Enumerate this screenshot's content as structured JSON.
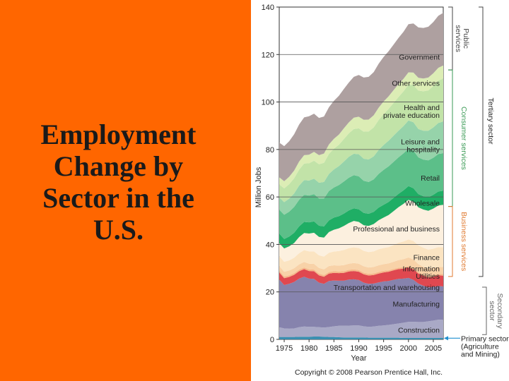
{
  "slide": {
    "title_lines": [
      "Employment",
      "Change by",
      "Sector in the",
      "U.S."
    ],
    "copyright": "Copyright © 2008 Pearson Prentice Hall, Inc."
  },
  "colors": {
    "left_panel": "#ff6600",
    "consumer": "#3a9a55",
    "business": "#e07a30",
    "secondary": "#888888",
    "primary": "#1f8fd0"
  },
  "chart_data": {
    "type": "area",
    "stacked": true,
    "xlabel": "Year",
    "ylabel": "Million Jobs",
    "xlim": [
      1974,
      2007
    ],
    "ylim": [
      0,
      140
    ],
    "x_ticks": [
      1975,
      1980,
      1985,
      1990,
      1995,
      2000,
      2005
    ],
    "y_ticks": [
      0,
      20,
      40,
      60,
      80,
      100,
      120,
      140
    ],
    "x": [
      1974,
      1975,
      1976,
      1977,
      1978,
      1979,
      1980,
      1981,
      1982,
      1983,
      1984,
      1985,
      1986,
      1987,
      1988,
      1989,
      1990,
      1991,
      1992,
      1993,
      1994,
      1995,
      1996,
      1997,
      1998,
      1999,
      2000,
      2001,
      2002,
      2003,
      2004,
      2005,
      2006,
      2007
    ],
    "series": [
      {
        "name": "Primary sector (Agriculture and Mining)",
        "color": "#3a8fb0",
        "values": [
          1.0,
          1.0,
          1.0,
          1.0,
          1.1,
          1.1,
          1.1,
          1.2,
          1.2,
          1.1,
          1.0,
          1.0,
          0.9,
          0.8,
          0.8,
          0.8,
          0.8,
          0.8,
          0.7,
          0.7,
          0.7,
          0.7,
          0.7,
          0.7,
          0.7,
          0.6,
          0.6,
          0.6,
          0.6,
          0.6,
          0.6,
          0.6,
          0.6,
          0.6
        ]
      },
      {
        "name": "Construction",
        "color": "#a9a9c6",
        "values": [
          4.1,
          3.6,
          3.5,
          3.6,
          4.0,
          4.3,
          4.2,
          4.1,
          3.9,
          3.9,
          4.2,
          4.5,
          4.8,
          4.9,
          5.0,
          5.1,
          5.1,
          4.7,
          4.6,
          4.7,
          5.0,
          5.2,
          5.4,
          5.7,
          6.0,
          6.4,
          6.8,
          6.8,
          6.7,
          6.7,
          7.0,
          7.3,
          7.7,
          7.7
        ]
      },
      {
        "name": "Manufacturing",
        "color": "#8683ad",
        "values": [
          20.1,
          18.3,
          18.9,
          19.6,
          20.5,
          21.0,
          20.3,
          20.2,
          18.8,
          18.4,
          19.4,
          19.3,
          19.0,
          19.0,
          19.4,
          19.4,
          19.1,
          18.4,
          18.1,
          18.1,
          18.3,
          18.5,
          18.5,
          18.7,
          18.8,
          18.6,
          18.5,
          17.7,
          16.2,
          15.3,
          14.3,
          14.2,
          14.2,
          14.0
        ]
      },
      {
        "name": "Transportation and warehousing",
        "color": "#e04850",
        "values": [
          3.0,
          2.9,
          2.9,
          3.0,
          3.1,
          3.2,
          3.2,
          3.2,
          3.1,
          3.0,
          3.1,
          3.2,
          3.2,
          3.3,
          3.4,
          3.5,
          3.5,
          3.5,
          3.5,
          3.6,
          3.7,
          3.8,
          3.9,
          4.0,
          4.1,
          4.2,
          4.4,
          4.4,
          4.2,
          4.2,
          4.2,
          4.3,
          4.5,
          4.5
        ]
      },
      {
        "name": "Utilities",
        "color": "#f5b88a",
        "values": [
          0.7,
          0.7,
          0.7,
          0.7,
          0.7,
          0.7,
          0.7,
          0.7,
          0.7,
          0.7,
          0.7,
          0.7,
          0.7,
          0.7,
          0.7,
          0.7,
          0.7,
          0.7,
          0.7,
          0.7,
          0.7,
          0.7,
          0.6,
          0.6,
          0.6,
          0.6,
          0.6,
          0.6,
          0.6,
          0.6,
          0.6,
          0.6,
          0.6,
          0.6
        ]
      },
      {
        "name": "Information",
        "color": "#f8d2a8",
        "values": [
          2.0,
          2.0,
          2.0,
          2.1,
          2.2,
          2.3,
          2.4,
          2.4,
          2.4,
          2.4,
          2.5,
          2.5,
          2.5,
          2.6,
          2.6,
          2.7,
          2.7,
          2.7,
          2.7,
          2.7,
          2.8,
          2.8,
          2.9,
          3.0,
          3.2,
          3.4,
          3.6,
          3.6,
          3.4,
          3.2,
          3.1,
          3.1,
          3.0,
          3.0
        ]
      },
      {
        "name": "Finance",
        "color": "#fbe4c2",
        "values": [
          4.2,
          4.2,
          4.3,
          4.4,
          4.7,
          5.0,
          5.2,
          5.3,
          5.3,
          5.4,
          5.6,
          5.8,
          6.1,
          6.4,
          6.5,
          6.6,
          6.6,
          6.5,
          6.5,
          6.6,
          6.8,
          6.8,
          6.9,
          7.0,
          7.3,
          7.5,
          7.6,
          7.8,
          7.9,
          8.0,
          8.0,
          8.1,
          8.3,
          8.4
        ]
      },
      {
        "name": "Professional and business",
        "color": "#fcf0df",
        "values": [
          5.4,
          5.6,
          5.9,
          6.2,
          6.8,
          7.2,
          7.5,
          7.8,
          7.8,
          8.0,
          8.7,
          9.2,
          9.6,
          10.1,
          10.6,
          11.1,
          11.0,
          10.8,
          11.0,
          11.5,
          12.2,
          12.8,
          13.5,
          14.3,
          15.0,
          15.8,
          16.7,
          16.5,
          16.0,
          16.1,
          16.4,
          16.9,
          17.5,
          17.9
        ]
      },
      {
        "name": "Wholesale",
        "color": "#1fae65",
        "values": [
          4.1,
          4.0,
          4.1,
          4.3,
          4.5,
          4.7,
          4.7,
          4.8,
          4.7,
          4.7,
          4.9,
          5.1,
          5.1,
          5.2,
          5.3,
          5.3,
          5.3,
          5.2,
          5.1,
          5.1,
          5.3,
          5.4,
          5.5,
          5.6,
          5.6,
          5.7,
          5.8,
          5.7,
          5.6,
          5.6,
          5.7,
          5.8,
          5.9,
          5.9
        ]
      },
      {
        "name": "Retail",
        "color": "#5cbf89",
        "values": [
          10.0,
          10.2,
          10.5,
          10.9,
          11.2,
          11.4,
          11.3,
          11.5,
          11.5,
          11.8,
          12.4,
          12.7,
          13.1,
          13.5,
          13.8,
          14.0,
          13.9,
          13.5,
          13.4,
          13.7,
          14.2,
          14.7,
          15.0,
          15.2,
          15.4,
          15.6,
          15.7,
          15.8,
          15.5,
          15.4,
          15.5,
          15.6,
          15.8,
          15.8
        ]
      },
      {
        "name": "Leisure and hospitality",
        "color": "#96d3aa",
        "values": [
          5.2,
          5.3,
          5.5,
          5.7,
          6.0,
          6.2,
          6.3,
          6.5,
          6.6,
          6.9,
          7.2,
          7.6,
          8.0,
          8.4,
          8.8,
          9.0,
          9.3,
          9.3,
          9.5,
          9.7,
          10.1,
          10.5,
          10.8,
          11.0,
          11.2,
          11.5,
          11.9,
          12.0,
          11.9,
          12.2,
          12.5,
          12.8,
          13.1,
          13.4
        ]
      },
      {
        "name": "Health and private education",
        "color": "#c2e3a8",
        "values": [
          5.5,
          5.8,
          6.1,
          6.4,
          6.7,
          7.0,
          7.3,
          7.6,
          7.8,
          8.1,
          8.4,
          8.7,
          9.0,
          9.5,
          9.9,
          10.4,
          10.9,
          11.4,
          11.8,
          12.2,
          12.6,
          13.0,
          13.4,
          13.8,
          14.2,
          14.6,
          15.1,
          15.6,
          16.2,
          16.6,
          17.0,
          17.4,
          17.8,
          18.1
        ]
      },
      {
        "name": "Other services",
        "color": "#dcedb5",
        "values": [
          3.0,
          3.0,
          3.1,
          3.2,
          3.4,
          3.5,
          3.6,
          3.7,
          3.8,
          3.9,
          4.0,
          4.2,
          4.3,
          4.5,
          4.6,
          4.8,
          4.9,
          5.0,
          5.0,
          5.1,
          5.2,
          5.3,
          5.3,
          5.4,
          5.4,
          5.3,
          5.2,
          5.3,
          5.4,
          5.4,
          5.4,
          5.4,
          5.4,
          5.5
        ]
      },
      {
        "name": "Government",
        "color": "#aea0a0",
        "values": [
          14.6,
          14.8,
          15.0,
          15.3,
          15.6,
          15.9,
          16.2,
          16.1,
          15.7,
          15.6,
          15.7,
          16.0,
          16.3,
          16.6,
          16.8,
          17.2,
          17.6,
          17.8,
          18.0,
          18.2,
          18.5,
          18.8,
          19.0,
          19.2,
          19.5,
          19.8,
          20.3,
          20.7,
          21.2,
          21.3,
          21.4,
          21.6,
          21.9,
          22.2
        ]
      }
    ],
    "brackets": [
      {
        "label": "Public services",
        "group": "tertiary",
        "from": 113.5,
        "to": 140,
        "color": "#444444"
      },
      {
        "label": "Consumer services",
        "group": "tertiary",
        "from": 56,
        "to": 113.5,
        "color": "#3a9a55"
      },
      {
        "label": "Business services",
        "group": "tertiary",
        "from": 26.5,
        "to": 56,
        "color": "#e07a30"
      },
      {
        "label": "Secondary sector",
        "group": "secondary",
        "from": 2,
        "to": 22,
        "color": "#666666"
      }
    ],
    "tertiary_label": "Tertiary sector",
    "primary_note": [
      "Primary sector",
      "(Agriculture",
      "and Mining)"
    ]
  }
}
